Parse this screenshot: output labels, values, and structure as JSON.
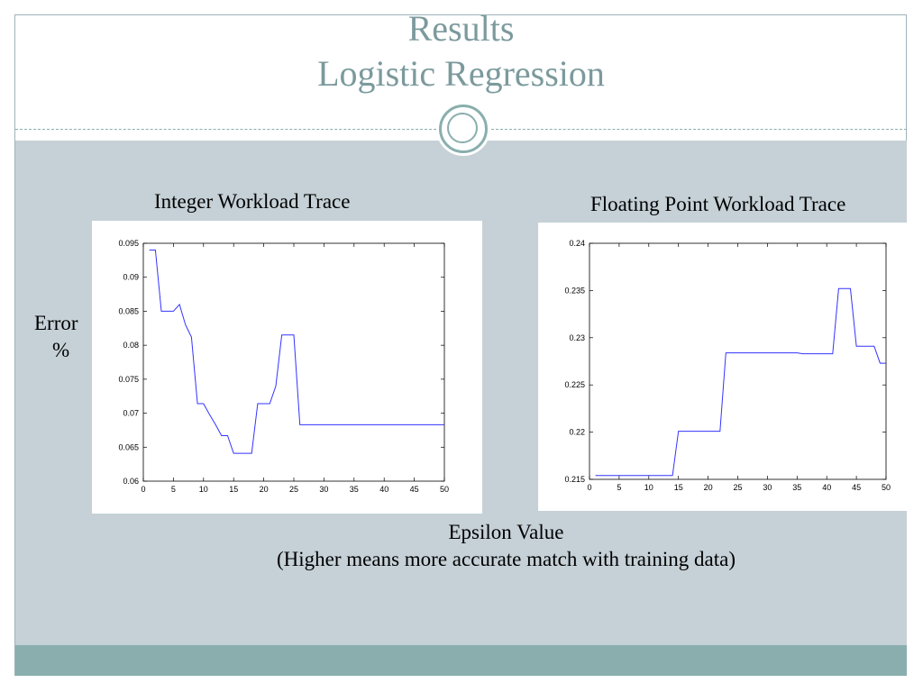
{
  "slide": {
    "title_line1": "Results",
    "title_line2": "Logistic Regression",
    "y_label_line1": "Error",
    "y_label_line2": "%",
    "x_caption_line1": "Epsilon Value",
    "x_caption_line2": "(Higher means more accurate match with training data)",
    "colors": {
      "title": "#7c9a9d",
      "accent": "#8aaeae",
      "content_bg": "#c5d1d7",
      "line": "#3333ff"
    }
  },
  "chart_data": [
    {
      "type": "line",
      "title": "Integer Workload Trace",
      "xlim": [
        0,
        50
      ],
      "ylim": [
        0.06,
        0.095
      ],
      "x_ticks": [
        0,
        5,
        10,
        15,
        20,
        25,
        30,
        35,
        40,
        45,
        50
      ],
      "y_ticks": [
        0.06,
        0.065,
        0.07,
        0.075,
        0.08,
        0.085,
        0.09,
        0.095
      ],
      "y_tick_labels": [
        "0.06",
        "0.065",
        "0.07",
        "0.075",
        "0.08",
        "0.085",
        "0.09",
        "0.095"
      ],
      "series": [
        {
          "x": [
            1,
            2,
            3,
            4,
            5,
            6,
            7,
            8,
            9,
            10,
            11,
            12,
            13,
            14,
            15,
            16,
            17,
            18,
            19,
            20,
            21,
            22,
            23,
            24,
            25,
            26,
            27,
            50
          ],
          "y": [
            0.094,
            0.094,
            0.085,
            0.085,
            0.085,
            0.086,
            0.083,
            0.0812,
            0.0714,
            0.0714,
            0.0698,
            0.0683,
            0.0667,
            0.0667,
            0.0641,
            0.0641,
            0.0641,
            0.0641,
            0.0714,
            0.0714,
            0.0714,
            0.074,
            0.0815,
            0.0815,
            0.0815,
            0.0683,
            0.0683,
            0.0683
          ]
        }
      ]
    },
    {
      "type": "line",
      "title": "Floating Point Workload Trace",
      "xlim": [
        0,
        50
      ],
      "ylim": [
        0.215,
        0.24
      ],
      "x_ticks": [
        0,
        5,
        10,
        15,
        20,
        25,
        30,
        35,
        40,
        45,
        50
      ],
      "y_ticks": [
        0.215,
        0.22,
        0.225,
        0.23,
        0.235,
        0.24
      ],
      "y_tick_labels": [
        "0.215",
        "0.22",
        "0.225",
        "0.23",
        "0.235",
        "0.24"
      ],
      "series": [
        {
          "x": [
            1,
            14,
            15,
            22,
            23,
            35,
            36,
            41,
            42,
            43,
            44,
            45,
            47,
            48,
            49,
            50
          ],
          "y": [
            0.2154,
            0.2154,
            0.2201,
            0.2201,
            0.2284,
            0.2284,
            0.2283,
            0.2283,
            0.2352,
            0.2352,
            0.2352,
            0.2291,
            0.2291,
            0.2291,
            0.2273,
            0.2273
          ]
        }
      ]
    }
  ]
}
